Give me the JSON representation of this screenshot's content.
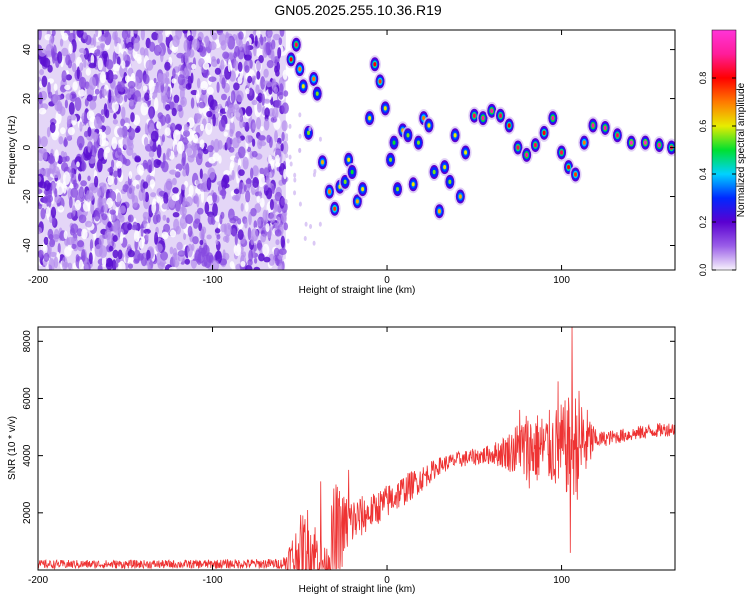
{
  "figure": {
    "title": "GN05.2025.255.10.36.R19"
  },
  "chart_data": [
    {
      "type": "heatmap",
      "title": "GN05.2025.255.10.36.R19",
      "xlabel": "Height of straight line (km)",
      "ylabel": "Frequency (Hz)",
      "xlim": [
        -200,
        165
      ],
      "ylim": [
        -50,
        48
      ],
      "xticks": [
        -200,
        -100,
        0,
        100
      ],
      "yticks": [
        -40,
        -20,
        0,
        20,
        40
      ],
      "noise_region_x": [
        -200,
        -58
      ],
      "colorbar": {
        "label": "Normalized spectral amplitude",
        "range": [
          0,
          1
        ],
        "ticks": [
          "0.0",
          "0.2",
          "0.4",
          "0.6",
          "0.8"
        ],
        "colormap": [
          "#f8f3fc",
          "#9a5ee8",
          "#5a00d0",
          "#0028ff",
          "#00d2ff",
          "#00e030",
          "#e8ec00",
          "#ff7a00",
          "#ff0000",
          "#ff1d9a",
          "#ff35d8"
        ]
      },
      "signal_track": [
        {
          "x": -55,
          "f": 36,
          "a": 0.8
        },
        {
          "x": -52,
          "f": 42,
          "a": 0.85
        },
        {
          "x": -50,
          "f": 32,
          "a": 0.7
        },
        {
          "x": -48,
          "f": 25,
          "a": 0.6
        },
        {
          "x": -45,
          "f": 6,
          "a": 0.55
        },
        {
          "x": -42,
          "f": 28,
          "a": 0.7
        },
        {
          "x": -40,
          "f": 22,
          "a": 0.55
        },
        {
          "x": -37,
          "f": -6,
          "a": 0.65
        },
        {
          "x": -33,
          "f": -18,
          "a": 0.7
        },
        {
          "x": -30,
          "f": -25,
          "a": 0.75
        },
        {
          "x": -27,
          "f": -16,
          "a": 0.6
        },
        {
          "x": -24,
          "f": -14,
          "a": 0.55
        },
        {
          "x": -22,
          "f": -5,
          "a": 0.6
        },
        {
          "x": -20,
          "f": -10,
          "a": 0.5
        },
        {
          "x": -17,
          "f": -22,
          "a": 0.65
        },
        {
          "x": -14,
          "f": -17,
          "a": 0.6
        },
        {
          "x": -10,
          "f": 12,
          "a": 0.6
        },
        {
          "x": -7,
          "f": 34,
          "a": 0.8
        },
        {
          "x": -4,
          "f": 27,
          "a": 0.75
        },
        {
          "x": -1,
          "f": 16,
          "a": 0.6
        },
        {
          "x": 2,
          "f": -5,
          "a": 0.55
        },
        {
          "x": 4,
          "f": 2,
          "a": 0.5
        },
        {
          "x": 6,
          "f": -17,
          "a": 0.55
        },
        {
          "x": 9,
          "f": 7,
          "a": 0.65
        },
        {
          "x": 12,
          "f": 5,
          "a": 0.55
        },
        {
          "x": 15,
          "f": -15,
          "a": 0.6
        },
        {
          "x": 18,
          "f": 2,
          "a": 0.55
        },
        {
          "x": 21,
          "f": 12,
          "a": 0.7
        },
        {
          "x": 24,
          "f": 9,
          "a": 0.6
        },
        {
          "x": 27,
          "f": -10,
          "a": 0.55
        },
        {
          "x": 30,
          "f": -26,
          "a": 0.65
        },
        {
          "x": 33,
          "f": -8,
          "a": 0.6
        },
        {
          "x": 36,
          "f": -14,
          "a": 0.55
        },
        {
          "x": 39,
          "f": 5,
          "a": 0.6
        },
        {
          "x": 42,
          "f": -20,
          "a": 0.65
        },
        {
          "x": 45,
          "f": -2,
          "a": 0.6
        },
        {
          "x": 50,
          "f": 13,
          "a": 0.85
        },
        {
          "x": 55,
          "f": 12,
          "a": 0.9
        },
        {
          "x": 60,
          "f": 15,
          "a": 0.9
        },
        {
          "x": 65,
          "f": 13,
          "a": 0.85
        },
        {
          "x": 70,
          "f": 9,
          "a": 0.8
        },
        {
          "x": 75,
          "f": 0,
          "a": 0.85
        },
        {
          "x": 80,
          "f": -3,
          "a": 0.9
        },
        {
          "x": 85,
          "f": 1,
          "a": 0.85
        },
        {
          "x": 90,
          "f": 6,
          "a": 0.8
        },
        {
          "x": 95,
          "f": 12,
          "a": 0.9
        },
        {
          "x": 100,
          "f": -2,
          "a": 0.85
        },
        {
          "x": 104,
          "f": -8,
          "a": 0.8
        },
        {
          "x": 108,
          "f": -11,
          "a": 0.75
        },
        {
          "x": 113,
          "f": 2,
          "a": 0.7
        },
        {
          "x": 118,
          "f": 9,
          "a": 0.9
        },
        {
          "x": 125,
          "f": 8,
          "a": 0.9
        },
        {
          "x": 132,
          "f": 5,
          "a": 0.85
        },
        {
          "x": 140,
          "f": 2,
          "a": 0.95
        },
        {
          "x": 148,
          "f": 2,
          "a": 0.95
        },
        {
          "x": 156,
          "f": 1,
          "a": 0.9
        },
        {
          "x": 163,
          "f": 0,
          "a": 0.85
        }
      ]
    },
    {
      "type": "line",
      "xlabel": "Height of straight line (km)",
      "ylabel": "SNR (10 * v/v)",
      "xlim": [
        -200,
        165
      ],
      "ylim": [
        0,
        8500
      ],
      "xticks": [
        -200,
        -100,
        0,
        100
      ],
      "yticks": [
        2000,
        4000,
        6000,
        8000
      ],
      "color": "#ee3333",
      "envelope": {
        "x": [
          -200,
          -120,
          -60,
          -50,
          -45,
          -40,
          -35,
          -30,
          -25,
          -20,
          -10,
          0,
          10,
          20,
          30,
          40,
          50,
          60,
          70,
          80,
          90,
          100,
          110,
          120,
          130,
          140,
          150,
          165
        ],
        "mean": [
          200,
          200,
          220,
          500,
          700,
          450,
          150,
          900,
          1500,
          1700,
          2000,
          2400,
          2800,
          3200,
          3650,
          3850,
          3950,
          4050,
          4150,
          4200,
          4300,
          4250,
          4400,
          4550,
          4650,
          4750,
          4850,
          4950
        ],
        "amp": [
          150,
          150,
          180,
          1400,
          1600,
          1200,
          500,
          2300,
          1200,
          900,
          600,
          600,
          550,
          450,
          300,
          280,
          300,
          350,
          700,
          1400,
          1200,
          1600,
          2000,
          300,
          250,
          250,
          250,
          250
        ]
      },
      "peaks": [
        {
          "x": -38,
          "y": 3100
        },
        {
          "x": -22,
          "y": 3500
        },
        {
          "x": 76,
          "y": 5600
        },
        {
          "x": 98,
          "y": 6600
        },
        {
          "x": 106,
          "y": 8500
        },
        {
          "x": 105,
          "y": 600
        }
      ]
    }
  ]
}
